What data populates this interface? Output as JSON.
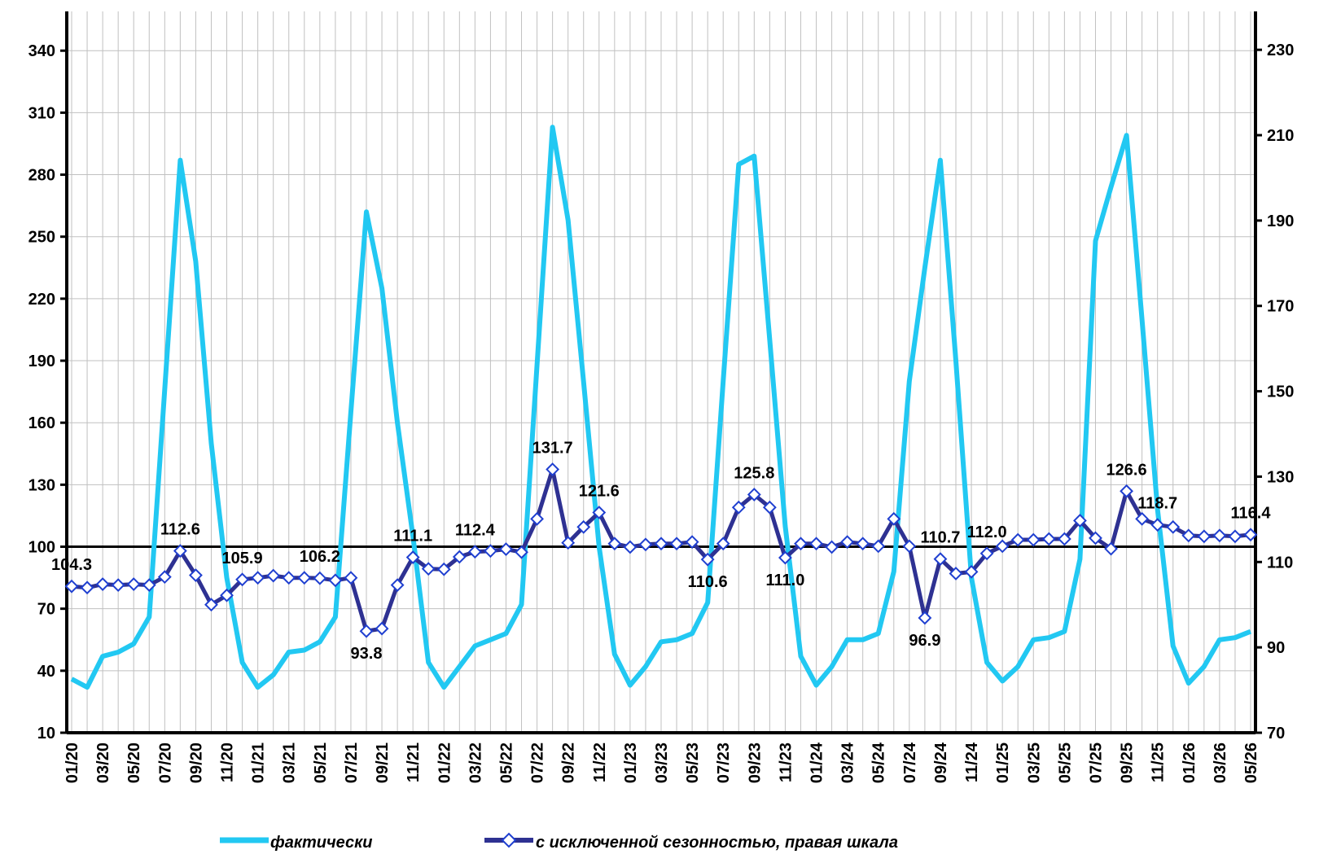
{
  "chart_data": {
    "type": "line",
    "categories": [
      "01/20",
      null,
      "03/20",
      null,
      "05/20",
      null,
      "07/20",
      null,
      "09/20",
      null,
      "11/20",
      null,
      "01/21",
      null,
      "03/21",
      null,
      "05/21",
      null,
      "07/21",
      null,
      "09/21",
      null,
      "11/21",
      null,
      "01/22",
      null,
      "03/22",
      null,
      "05/22",
      null,
      "07/22",
      null,
      "09/22",
      null,
      "11/22",
      null,
      "01/23",
      null,
      "03/23",
      null,
      "05/23",
      null,
      "07/23",
      null,
      "09/23",
      null,
      "11/23",
      null,
      "01/24",
      null,
      "03/24",
      null,
      "05/24",
      null,
      "07/24",
      null,
      "09/24",
      null,
      "11/24",
      null,
      "01/25",
      null,
      "03/25",
      null,
      "05/25",
      null,
      "07/25",
      null,
      "09/25",
      null,
      "11/25",
      null,
      "01/26",
      null,
      "03/26",
      null,
      "05/26"
    ],
    "series": [
      {
        "name": "фактически",
        "color": "#22c8f2",
        "values": [
          36,
          32,
          47,
          49,
          53,
          66,
          176,
          287,
          238,
          150,
          85,
          44,
          32,
          38,
          49,
          50,
          54,
          66,
          165,
          262,
          225,
          160,
          105,
          44,
          32,
          42,
          52,
          55,
          58,
          72,
          188,
          303,
          258,
          180,
          100,
          48,
          33,
          42,
          54,
          55,
          58,
          73,
          180,
          285,
          289,
          200,
          110,
          47,
          33,
          42,
          55,
          55,
          58,
          88,
          180,
          235,
          287,
          190,
          85,
          44,
          35,
          42,
          55,
          56,
          59,
          94,
          248,
          274,
          299,
          210,
          118,
          52,
          34,
          42,
          55,
          56,
          59
        ]
      },
      {
        "name": "с исключенной сезонностью, правая шкала",
        "color": "#2e3192",
        "axis": "y2",
        "marker": "diamond",
        "values": [
          104.3,
          104.0,
          104.8,
          104.6,
          104.8,
          104.6,
          106.5,
          112.6,
          106.9,
          100.0,
          102.2,
          105.9,
          106.3,
          106.8,
          106.3,
          106.3,
          106.2,
          105.7,
          106.3,
          93.8,
          94.4,
          104.6,
          111.1,
          108.4,
          108.3,
          111.2,
          112.4,
          112.6,
          113.0,
          112.3,
          120.1,
          131.7,
          114.5,
          118.2,
          121.6,
          114.3,
          113.5,
          114.1,
          114.3,
          114.3,
          114.7,
          110.6,
          114.3,
          122.8,
          125.8,
          122.8,
          111.0,
          114.3,
          114.3,
          113.5,
          114.7,
          114.3,
          113.7,
          120.1,
          113.7,
          96.9,
          110.7,
          107.3,
          107.7,
          112.0,
          113.7,
          115.2,
          115.2,
          115.4,
          115.4,
          119.7,
          115.6,
          113.1,
          126.6,
          120.1,
          118.7,
          118.2,
          116.2,
          116.0,
          116.2,
          116.0,
          116.4
        ],
        "value_labels": [
          "104.3",
          null,
          null,
          null,
          null,
          null,
          null,
          "112.6",
          null,
          null,
          null,
          "105.9",
          null,
          null,
          null,
          null,
          "106.2",
          null,
          null,
          "93.8",
          null,
          null,
          "111.1",
          null,
          null,
          null,
          "112.4",
          null,
          null,
          null,
          null,
          "131.7",
          null,
          null,
          "121.6",
          null,
          null,
          null,
          null,
          null,
          null,
          "110.6",
          null,
          null,
          "125.8",
          null,
          "111.0",
          null,
          null,
          null,
          null,
          null,
          null,
          null,
          null,
          "96.9",
          "110.7",
          null,
          null,
          "112.0",
          null,
          null,
          null,
          null,
          null,
          null,
          null,
          null,
          "126.6",
          null,
          "118.7",
          null,
          null,
          null,
          null,
          null,
          "116.4"
        ]
      }
    ],
    "ylim": [
      10,
      359
    ],
    "yticks": [
      10,
      40,
      70,
      100,
      130,
      160,
      190,
      220,
      250,
      280,
      310,
      340
    ],
    "y2lim": [
      70,
      239
    ],
    "y2ticks": [
      70,
      90,
      110,
      130,
      150,
      170,
      190,
      210,
      230
    ],
    "reference_line": 100,
    "grid": true,
    "legend": "bottom"
  }
}
